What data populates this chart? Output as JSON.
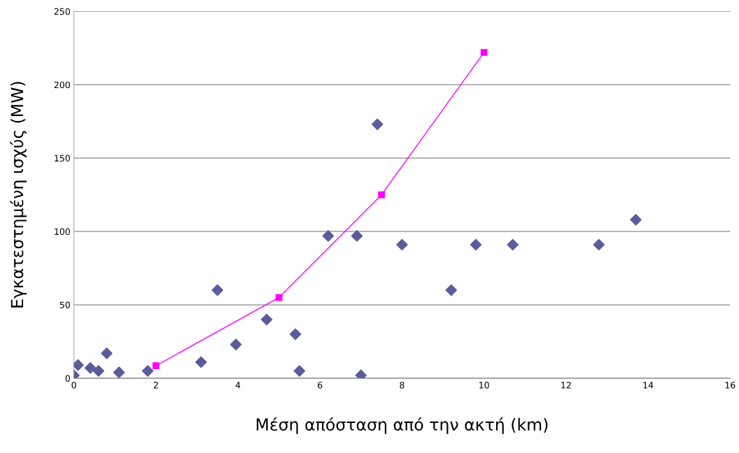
{
  "chart_data": {
    "type": "scatter",
    "xlabel": "Μέση απόσταση από την ακτή (km)",
    "ylabel": "Εγκατεστημένη ισχύς (MW)",
    "xlim": [
      0,
      16
    ],
    "xticks": [
      0,
      2,
      4,
      6,
      8,
      10,
      12,
      14,
      16
    ],
    "ylim": [
      0,
      250
    ],
    "yticks": [
      0,
      50,
      100,
      150,
      200,
      250
    ],
    "grid": "y",
    "legend": false,
    "series": [
      {
        "marker": "diamond",
        "color": "#5c5c9a",
        "x": [
          0,
          0.1,
          0.4,
          0.6,
          0.8,
          1.1,
          1.8,
          3.1,
          3.5,
          3.95,
          4.7,
          5.4,
          5.5,
          6.2,
          6.9,
          7.0,
          7.4,
          8.0,
          9.2,
          9.8,
          10.7,
          12.8,
          13.7
        ],
        "values": [
          2,
          9,
          7,
          5,
          17,
          4,
          5,
          11,
          60,
          23,
          40,
          30,
          5,
          97,
          97,
          2,
          173,
          91,
          60,
          91,
          91,
          91,
          108
        ]
      },
      {
        "type": "line",
        "marker": "square",
        "line_style": "solid",
        "color": "#ff00ff",
        "x": [
          2,
          5,
          7.5,
          10
        ],
        "values": [
          8.5,
          55,
          125,
          222
        ]
      }
    ]
  }
}
